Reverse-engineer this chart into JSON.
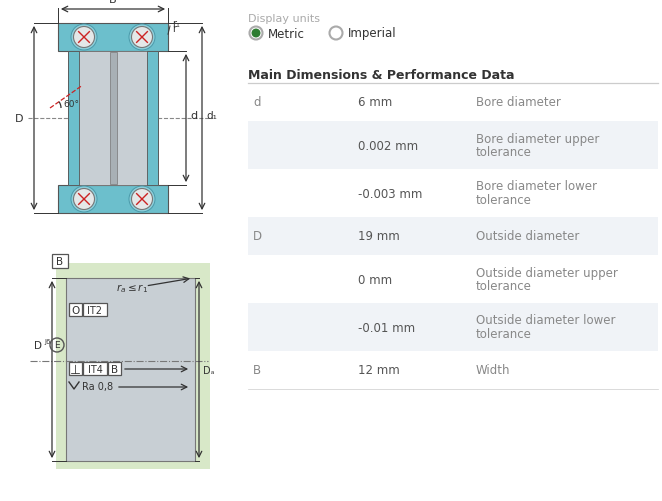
{
  "bg_color": "#ffffff",
  "table_title": "Main Dimensions & Performance Data",
  "display_units_label": "Display units",
  "radio_metric": "Metric",
  "radio_imperial": "Imperial",
  "table_rows": [
    {
      "param": "d",
      "value": "6 mm",
      "desc": "Bore diameter",
      "shaded": false
    },
    {
      "param": "",
      "value": "0.002 mm",
      "desc": "Bore diameter upper\ntolerance",
      "shaded": true
    },
    {
      "param": "",
      "value": "-0.003 mm",
      "desc": "Bore diameter lower\ntolerance",
      "shaded": false
    },
    {
      "param": "D",
      "value": "19 mm",
      "desc": "Outside diameter",
      "shaded": true
    },
    {
      "param": "",
      "value": "0 mm",
      "desc": "Outside diameter upper\ntolerance",
      "shaded": false
    },
    {
      "param": "",
      "value": "-0.01 mm",
      "desc": "Outside diameter lower\ntolerance",
      "shaded": true
    },
    {
      "param": "B",
      "value": "12 mm",
      "desc": "Width",
      "shaded": false
    }
  ],
  "teal_color": "#6cbfcc",
  "light_teal": "#8ecfda",
  "gray_bg": "#c8cfd4",
  "inner_gray": "#b8bec3",
  "green_color": "#2e7d32",
  "param_color": "#888888",
  "value_color": "#555555",
  "desc_color": "#888888",
  "title_color": "#333333",
  "shaded_row_color": "#f0f3f7",
  "divider_color": "#cccccc",
  "display_units_color": "#aaaaaa",
  "arrow_color": "#333333",
  "text_color": "#333333",
  "green_bg": "#d8e8c8"
}
